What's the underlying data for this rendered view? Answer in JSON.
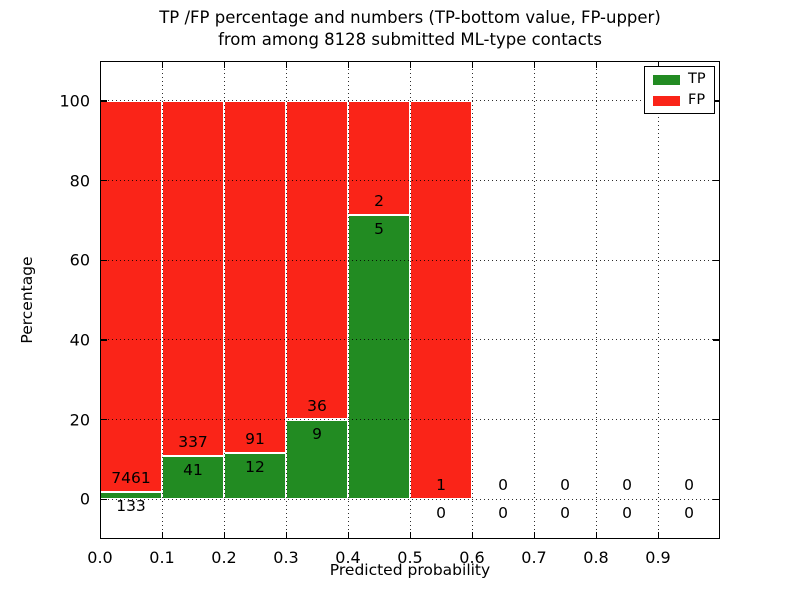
{
  "title": {
    "line1": "TP /FP percentage and numbers (TP-bottom value, FP-upper)",
    "line2": "from among 8128 submitted ML-type contacts"
  },
  "axes": {
    "xlabel": "Predicted probability",
    "ylabel": "Percentage",
    "xtick_labels": [
      "0.0",
      "0.1",
      "0.2",
      "0.3",
      "0.4",
      "0.5",
      "0.6",
      "0.7",
      "0.8",
      "0.9"
    ],
    "ytick_values": [
      0,
      20,
      40,
      60,
      80,
      100
    ],
    "ylim": [
      -10,
      110
    ],
    "xlim": [
      0,
      1
    ],
    "grid": "dotted"
  },
  "legend": {
    "position": "upper-right",
    "entries": [
      {
        "label": "TP",
        "color": "#228b22"
      },
      {
        "label": "FP",
        "color": "#fa2418"
      }
    ]
  },
  "colors": {
    "tp": "#228b22",
    "fp": "#fa2418",
    "bar_edge": "#ffffff"
  },
  "chart_data": {
    "type": "bar",
    "stacked": true,
    "total_contacts": 8128,
    "bin_width": 0.1,
    "bins": [
      {
        "x0": 0.0,
        "x1": 0.1,
        "tp_count": 133,
        "fp_count": 7461,
        "tp_pct": 1.75,
        "fp_pct": 98.25,
        "has_bar": true
      },
      {
        "x0": 0.1,
        "x1": 0.2,
        "tp_count": 41,
        "fp_count": 337,
        "tp_pct": 10.85,
        "fp_pct": 89.15,
        "has_bar": true
      },
      {
        "x0": 0.2,
        "x1": 0.3,
        "tp_count": 12,
        "fp_count": 91,
        "tp_pct": 11.65,
        "fp_pct": 88.35,
        "has_bar": true
      },
      {
        "x0": 0.3,
        "x1": 0.4,
        "tp_count": 9,
        "fp_count": 36,
        "tp_pct": 20.0,
        "fp_pct": 80.0,
        "has_bar": true
      },
      {
        "x0": 0.4,
        "x1": 0.5,
        "tp_count": 5,
        "fp_count": 2,
        "tp_pct": 71.43,
        "fp_pct": 28.57,
        "has_bar": true
      },
      {
        "x0": 0.5,
        "x1": 0.6,
        "tp_count": 0,
        "fp_count": 1,
        "tp_pct": 0.0,
        "fp_pct": 100.0,
        "has_bar": true
      },
      {
        "x0": 0.6,
        "x1": 0.7,
        "tp_count": 0,
        "fp_count": 0,
        "tp_pct": null,
        "fp_pct": null,
        "has_bar": false
      },
      {
        "x0": 0.7,
        "x1": 0.8,
        "tp_count": 0,
        "fp_count": 0,
        "tp_pct": null,
        "fp_pct": null,
        "has_bar": false
      },
      {
        "x0": 0.8,
        "x1": 0.9,
        "tp_count": 0,
        "fp_count": 0,
        "tp_pct": null,
        "fp_pct": null,
        "has_bar": false
      },
      {
        "x0": 0.9,
        "x1": 1.0,
        "tp_count": 0,
        "fp_count": 0,
        "tp_pct": null,
        "fp_pct": null,
        "has_bar": false
      }
    ],
    "annotation_rule": "FP count printed above green/red boundary, TP count printed below it"
  }
}
